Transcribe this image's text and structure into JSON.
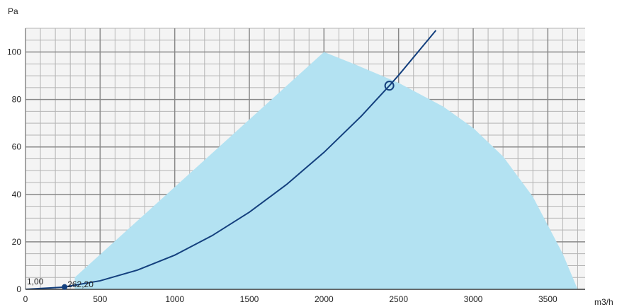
{
  "chart_data": {
    "type": "line",
    "xlabel": "m3/h",
    "ylabel": "Pa",
    "xlim": [
      0,
      3750
    ],
    "ylim": [
      0,
      110
    ],
    "x_ticks": [
      "0",
      "500",
      "1000",
      "1500",
      "2000",
      "2500",
      "3000",
      "3500"
    ],
    "y_ticks": [
      "0",
      "20",
      "40",
      "60",
      "80",
      "100"
    ],
    "grid": true,
    "colors": {
      "area": "#b3e2f2",
      "curve": "#14407e",
      "grid_major": "#888888",
      "grid_minor": "#b4b4b4",
      "plot_bg": "#f4f4f4"
    },
    "operating_area": {
      "x": [
        330,
        2000,
        2200,
        2500,
        2800,
        3000,
        3200,
        3400,
        3600,
        3700
      ],
      "y": [
        5,
        100,
        95,
        87,
        77,
        68,
        56,
        39,
        15,
        0
      ]
    },
    "system_curve": {
      "x": [
        0,
        250,
        262,
        500,
        750,
        1000,
        1250,
        1500,
        1750,
        2000,
        2250,
        2438,
        2500,
        2750
      ],
      "y": [
        0,
        0.9,
        1.0,
        3.6,
        8.1,
        14.4,
        22.6,
        32.5,
        44.2,
        57.7,
        73.0,
        85.8,
        90.2,
        109.1
      ]
    },
    "duty_point": {
      "x": 2438,
      "y": 85.8
    },
    "start_point": {
      "x": 262,
      "y": 1.0
    },
    "annotations": [
      {
        "text": "1,00",
        "x": 10,
        "y": 1.0
      },
      {
        "text": "262,20",
        "x": 262,
        "y": 1.0
      }
    ]
  }
}
